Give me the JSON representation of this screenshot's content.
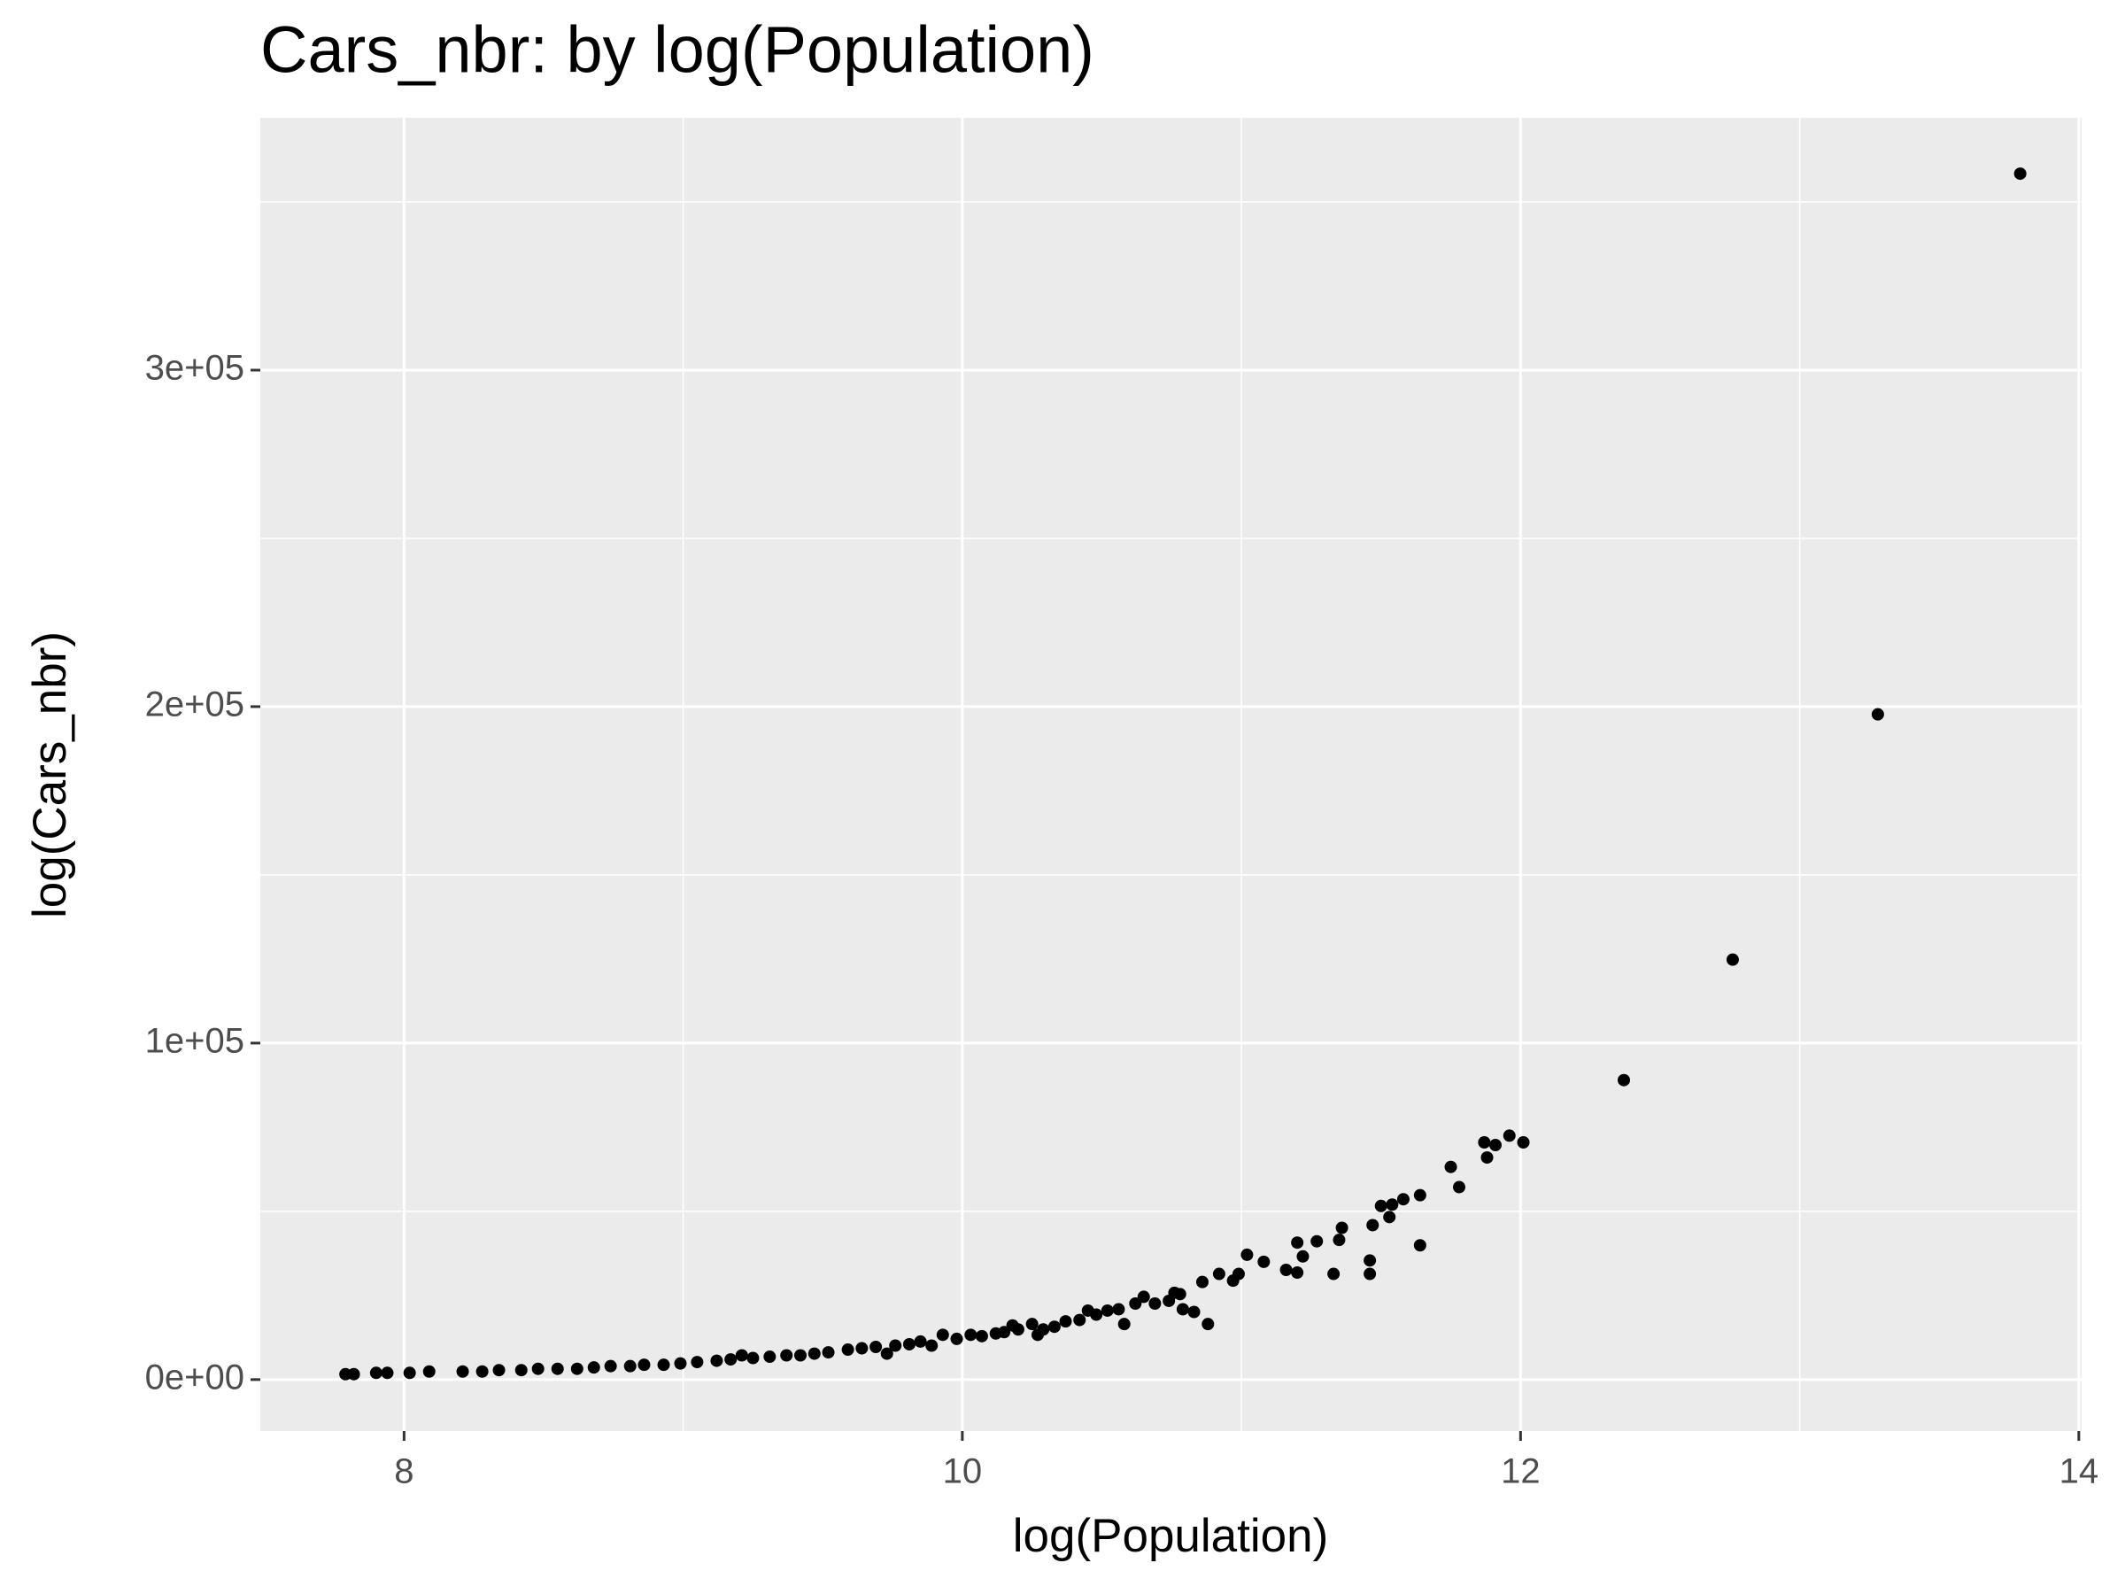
{
  "chart_data": {
    "type": "scatter",
    "title": "Cars_nbr: by log(Population)",
    "x_label": "log(Population)",
    "y_label": "log(Cars_nbr)",
    "color": "#000000",
    "panel_color": "#ebebeb",
    "grid": true,
    "xlim": [
      7.485,
      14.01
    ],
    "ylim": [
      -15300,
      375000
    ],
    "xticks": [
      8,
      10,
      12,
      14
    ],
    "yticks": [
      {
        "value": 0,
        "label": "0e+00"
      },
      {
        "value": 100000,
        "label": "1e+05"
      },
      {
        "value": 200000,
        "label": "2e+05"
      },
      {
        "value": 300000,
        "label": "3e+05"
      }
    ],
    "xminor": [
      9,
      11,
      13
    ],
    "yminor": [
      50000,
      150000,
      250000,
      350000
    ],
    "x": [
      13.79,
      13.28,
      12.76,
      12.37,
      12.01,
      11.96,
      11.91,
      11.87,
      11.88,
      11.78,
      11.75,
      11.64,
      11.64,
      11.58,
      11.54,
      11.5,
      11.53,
      11.47,
      11.46,
      11.46,
      11.36,
      11.35,
      11.33,
      11.27,
      11.2,
      11.22,
      11.2,
      11.16,
      11.08,
      11.02,
      10.99,
      10.97,
      10.92,
      10.86,
      10.88,
      10.83,
      10.79,
      10.78,
      10.76,
      10.74,
      10.69,
      10.65,
      10.62,
      10.58,
      10.56,
      10.52,
      10.48,
      10.45,
      10.42,
      10.37,
      10.33,
      10.29,
      10.25,
      10.27,
      10.2,
      10.18,
      10.15,
      10.12,
      10.07,
      10.03,
      9.98,
      9.93,
      9.89,
      9.85,
      9.81,
      9.76,
      9.73,
      9.69,
      9.64,
      9.59,
      9.52,
      9.47,
      9.42,
      9.37,
      9.31,
      9.25,
      9.21,
      9.17,
      9.12,
      9.05,
      8.99,
      8.93,
      8.86,
      8.81,
      8.74,
      8.68,
      8.62,
      8.55,
      8.48,
      8.42,
      8.34,
      8.28,
      8.21,
      8.09,
      8.02,
      7.94,
      7.9,
      7.82,
      7.79
    ],
    "values": [
      358400,
      197700,
      124800,
      89000,
      70500,
      72500,
      69700,
      70500,
      66000,
      57200,
      63200,
      54800,
      39900,
      53600,
      52000,
      51600,
      48300,
      45900,
      35400,
      31400,
      45100,
      41500,
      31400,
      41100,
      40700,
      36600,
      31800,
      32600,
      35000,
      37100,
      31400,
      29400,
      31400,
      29000,
      16500,
      20100,
      20900,
      25400,
      25800,
      23400,
      22600,
      24600,
      22600,
      16500,
      20900,
      20500,
      19300,
      20500,
      17700,
      17300,
      15700,
      14900,
      16500,
      13300,
      14900,
      16100,
      14100,
      13700,
      12900,
      13300,
      12100,
      13300,
      10100,
      11300,
      10500,
      10100,
      7700,
      9700,
      9300,
      8900,
      8100,
      7700,
      7200,
      7200,
      6800,
      6400,
      7200,
      6000,
      5600,
      5200,
      4800,
      4400,
      4400,
      4000,
      4000,
      3600,
      3200,
      3200,
      3200,
      2800,
      2800,
      2400,
      2400,
      2400,
      2000,
      2000,
      2000,
      1600,
      1600
    ]
  }
}
